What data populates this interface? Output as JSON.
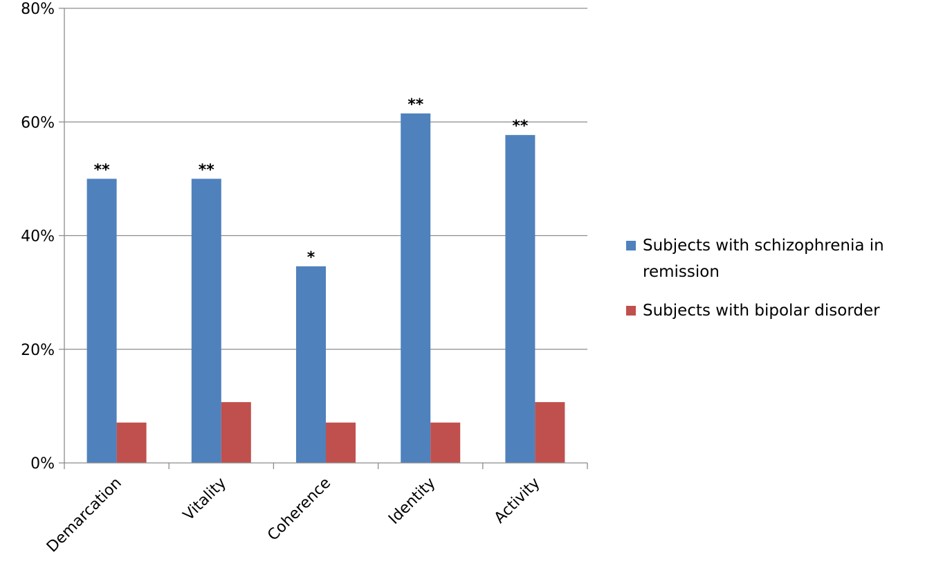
{
  "chart_data": {
    "type": "bar",
    "categories": [
      "Demarcation",
      "Vitality",
      "Coherence",
      "Identity",
      "Activity"
    ],
    "series": [
      {
        "name": "Subjects with schizophrenia in remission",
        "values": [
          50,
          50,
          34.6,
          61.5,
          57.7
        ],
        "annotations": [
          "**",
          "**",
          "*",
          "**",
          "**"
        ],
        "color": "#4F81BD"
      },
      {
        "name": "Subjects with bipolar disorder",
        "values": [
          7.1,
          10.7,
          7.1,
          7.1,
          10.7
        ],
        "color": "#C0504D"
      }
    ],
    "ylim": [
      0,
      80
    ],
    "yticks": [
      0,
      20,
      40,
      60,
      80
    ],
    "ytick_labels": [
      "0%",
      "20%",
      "40%",
      "60%",
      "80%"
    ],
    "grid": true,
    "legend": "right",
    "title": "",
    "xlabel": "",
    "ylabel": ""
  }
}
